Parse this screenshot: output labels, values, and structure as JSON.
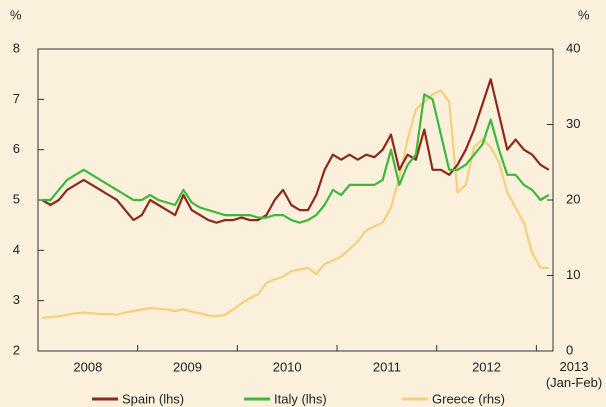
{
  "chart_data": {
    "type": "line",
    "ylabel": "%",
    "y2label": "%",
    "categories": [
      null,
      null,
      null,
      null,
      null,
      null,
      "2008",
      null,
      null,
      null,
      null,
      null,
      null,
      null,
      null,
      null,
      null,
      null,
      "2009",
      null,
      null,
      null,
      null,
      null,
      null,
      null,
      null,
      null,
      null,
      null,
      "2010",
      null,
      null,
      null,
      null,
      null,
      null,
      null,
      null,
      null,
      null,
      null,
      "2011",
      null,
      null,
      null,
      null,
      null,
      null,
      null,
      null,
      null,
      null,
      null,
      "2012",
      null,
      null,
      null,
      null,
      null,
      null,
      "2013 (Jan-Feb)"
    ],
    "ylim": [
      2,
      8
    ],
    "yticks": [
      2,
      3,
      4,
      5,
      6,
      7,
      8
    ],
    "y2lim": [
      0,
      40
    ],
    "y2ticks": [
      0,
      10,
      20,
      30,
      40
    ],
    "series": [
      {
        "name": "Spain (lhs)",
        "color": "#8b2a1a",
        "values": [
          5.0,
          4.9,
          5.0,
          5.2,
          5.3,
          5.4,
          5.3,
          5.2,
          5.1,
          5.0,
          4.8,
          4.6,
          4.7,
          5.0,
          4.9,
          4.8,
          4.7,
          5.1,
          4.8,
          4.7,
          4.6,
          4.55,
          4.6,
          4.6,
          4.65,
          4.6,
          4.6,
          4.7,
          5.0,
          5.2,
          4.9,
          4.8,
          4.8,
          5.1,
          5.6,
          5.9,
          5.8,
          5.9,
          5.8,
          5.9,
          5.85,
          6.0,
          6.3,
          5.6,
          5.9,
          5.8,
          6.4,
          5.6,
          5.6,
          5.5,
          5.7,
          6.0,
          6.4,
          6.9,
          7.4,
          6.7,
          6.0,
          6.2,
          6.0,
          5.9,
          5.7,
          5.6
        ]
      },
      {
        "name": "Italy (lhs)",
        "color": "#3db83a",
        "values": [
          5.0,
          5.0,
          5.2,
          5.4,
          5.5,
          5.6,
          5.5,
          5.4,
          5.3,
          5.2,
          5.1,
          5.0,
          5.0,
          5.1,
          5.0,
          4.95,
          4.9,
          5.2,
          4.95,
          4.85,
          4.8,
          4.75,
          4.7,
          4.7,
          4.7,
          4.7,
          4.65,
          4.65,
          4.7,
          4.7,
          4.6,
          4.55,
          4.6,
          4.7,
          4.9,
          5.2,
          5.1,
          5.3,
          5.3,
          5.3,
          5.3,
          5.4,
          6.0,
          5.3,
          5.7,
          5.9,
          7.1,
          7.0,
          6.3,
          5.6,
          5.6,
          5.7,
          5.9,
          6.1,
          6.6,
          6.0,
          5.5,
          5.5,
          5.3,
          5.2,
          5.0,
          5.1
        ]
      },
      {
        "name": "Greece (rhs)",
        "color": "#f6cf7a",
        "axis": "y2",
        "values": [
          4.4,
          4.5,
          4.6,
          4.8,
          5.0,
          5.1,
          5.0,
          4.9,
          4.9,
          4.8,
          5.1,
          5.3,
          5.5,
          5.7,
          5.6,
          5.5,
          5.3,
          5.5,
          5.2,
          5.0,
          4.7,
          4.6,
          4.8,
          5.5,
          6.3,
          7.0,
          7.5,
          9.0,
          9.5,
          9.8,
          10.6,
          10.8,
          11.0,
          10.2,
          11.5,
          12.0,
          12.5,
          13.5,
          14.5,
          16.0,
          16.5,
          17.0,
          19.0,
          23,
          28,
          32,
          33,
          34,
          34.5,
          33,
          21,
          22,
          27,
          28,
          27,
          25,
          21,
          19,
          17,
          13,
          11,
          11
        ]
      }
    ]
  }
}
